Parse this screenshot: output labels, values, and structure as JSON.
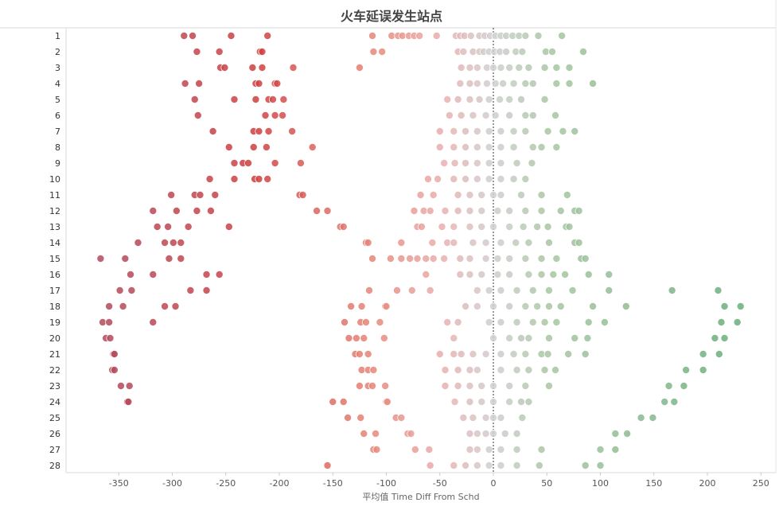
{
  "chart_data": {
    "type": "scatter",
    "title": "火车延误发生站点",
    "xlabel": "平均值 Time Diff From Schd",
    "ylabel": "",
    "xlim": [
      -395,
      265
    ],
    "xticks": [
      -350,
      -300,
      -250,
      -200,
      -150,
      -100,
      -50,
      0,
      50,
      100,
      150,
      200,
      250
    ],
    "xtick_labels": [
      "-350",
      "-300",
      "-250",
      "-200",
      "-150",
      "-100",
      "-50",
      "0",
      "50",
      "100",
      "150",
      "200",
      "250"
    ],
    "reference_line": 0,
    "color_scale": {
      "very_negative": "#b34a5c",
      "negative": "#cf3f3f",
      "mid_negative": "#e8887a",
      "slight_negative": "#e9b0b0",
      "zero": "#cfcfcf",
      "positive": "#a9c6a2",
      "very_positive": "#6aae7c"
    },
    "rows": [
      {
        "label": "1",
        "values": [
          -289,
          -281,
          -245,
          -211,
          -113,
          -95,
          -89,
          -85,
          -79,
          -74,
          -69,
          -53,
          -35,
          -31,
          -27,
          -21,
          -13,
          -8,
          -3,
          2,
          7,
          12,
          18,
          24,
          30,
          42,
          64
        ]
      },
      {
        "label": "2",
        "values": [
          -277,
          -256,
          -218,
          -216,
          -112,
          -104,
          -33,
          -28,
          -19,
          -13,
          -9,
          -4,
          1,
          6,
          12,
          21,
          27,
          49,
          55,
          84
        ]
      },
      {
        "label": "3",
        "values": [
          -255,
          -251,
          -225,
          -216,
          -187,
          -125,
          -30,
          -22,
          -15,
          -6,
          0,
          7,
          15,
          24,
          33,
          48,
          59,
          71
        ]
      },
      {
        "label": "4",
        "values": [
          -288,
          -275,
          -222,
          -219,
          -204,
          -202,
          -31,
          -22,
          -15,
          -6,
          2,
          9,
          19,
          30,
          37,
          59,
          71,
          93
        ]
      },
      {
        "label": "5",
        "values": [
          -279,
          -242,
          -222,
          -210,
          -206,
          -196,
          -43,
          -33,
          -22,
          -13,
          -4,
          6,
          15,
          26,
          48
        ]
      },
      {
        "label": "6",
        "values": [
          -276,
          -213,
          -204,
          -197,
          -41,
          -30,
          -19,
          -7,
          2,
          15,
          30,
          37,
          58
        ]
      },
      {
        "label": "7",
        "values": [
          -262,
          -224,
          -219,
          -210,
          -188,
          -50,
          -37,
          -26,
          -15,
          -4,
          7,
          19,
          30,
          51,
          65,
          76
        ]
      },
      {
        "label": "8",
        "values": [
          -247,
          -224,
          -212,
          -169,
          -50,
          -37,
          -26,
          -15,
          -4,
          7,
          19,
          37,
          45,
          59
        ]
      },
      {
        "label": "9",
        "values": [
          -242,
          -234,
          -229,
          -204,
          -180,
          -46,
          -36,
          -26,
          -15,
          -4,
          7,
          22,
          36
        ]
      },
      {
        "label": "10",
        "values": [
          -265,
          -242,
          -223,
          -219,
          -211,
          -61,
          -52,
          -37,
          -26,
          -15,
          -4,
          7,
          19,
          30
        ]
      },
      {
        "label": "11",
        "values": [
          -301,
          -279,
          -274,
          -260,
          -181,
          -178,
          -68,
          -56,
          -33,
          -22,
          -11,
          0,
          7,
          26,
          45,
          69
        ]
      },
      {
        "label": "12",
        "values": [
          -318,
          -296,
          -277,
          -264,
          -165,
          -155,
          -74,
          -65,
          -59,
          -45,
          -33,
          -22,
          -11,
          4,
          15,
          30,
          45,
          63,
          76,
          80
        ]
      },
      {
        "label": "13",
        "values": [
          -314,
          -304,
          -285,
          -247,
          -143,
          -140,
          -71,
          -67,
          -48,
          -37,
          -22,
          -11,
          0,
          15,
          28,
          41,
          51,
          68,
          71
        ]
      },
      {
        "label": "14",
        "values": [
          -332,
          -307,
          -299,
          -292,
          -119,
          -117,
          -86,
          -57,
          -43,
          -37,
          -19,
          -7,
          7,
          21,
          33,
          52,
          76,
          80
        ]
      },
      {
        "label": "15",
        "values": [
          -367,
          -344,
          -303,
          -292,
          -113,
          -96,
          -86,
          -78,
          -71,
          -63,
          -56,
          -46,
          -31,
          -22,
          -7,
          4,
          15,
          30,
          45,
          59,
          82,
          86
        ]
      },
      {
        "label": "16",
        "values": [
          -339,
          -318,
          -268,
          -256,
          -63,
          -31,
          -22,
          -11,
          4,
          15,
          33,
          45,
          56,
          67,
          89,
          108
        ]
      },
      {
        "label": "17",
        "values": [
          -349,
          -338,
          -283,
          -268,
          -116,
          -90,
          -76,
          -59,
          -15,
          -4,
          7,
          22,
          37,
          52,
          74,
          108,
          167,
          210
        ]
      },
      {
        "label": "18",
        "values": [
          -359,
          -346,
          -307,
          -297,
          -133,
          -123,
          -101,
          -100,
          -26,
          -15,
          0,
          15,
          30,
          41,
          52,
          63,
          93,
          124,
          216,
          231
        ]
      },
      {
        "label": "19",
        "values": [
          -365,
          -359,
          -318,
          -139,
          -124,
          -119,
          -106,
          -43,
          -33,
          -4,
          7,
          22,
          37,
          48,
          59,
          89,
          104,
          213,
          228
        ]
      },
      {
        "label": "20",
        "values": [
          -362,
          -358,
          -135,
          -128,
          -121,
          -102,
          -37,
          0,
          15,
          26,
          33,
          52,
          76,
          88,
          207,
          216
        ]
      },
      {
        "label": "21",
        "values": [
          -355,
          -354,
          -129,
          -125,
          -117,
          -50,
          -37,
          -30,
          -19,
          -7,
          7,
          19,
          30,
          45,
          51,
          70,
          86,
          196,
          211
        ]
      },
      {
        "label": "22",
        "values": [
          -356,
          -354,
          -123,
          -117,
          -112,
          -45,
          -33,
          -22,
          -15,
          7,
          22,
          33,
          48,
          58,
          180,
          196
        ]
      },
      {
        "label": "23",
        "values": [
          -348,
          -340,
          -125,
          -117,
          -113,
          -101,
          -45,
          -33,
          -22,
          -11,
          0,
          15,
          30,
          52,
          164,
          178
        ]
      },
      {
        "label": "24",
        "values": [
          -342,
          -341,
          -150,
          -140,
          -100,
          -99,
          -36,
          -22,
          -11,
          0,
          15,
          26,
          33,
          160,
          169
        ]
      },
      {
        "label": "25",
        "values": [
          -136,
          -124,
          -91,
          -86,
          -28,
          -19,
          -7,
          0,
          7,
          27,
          138,
          149
        ]
      },
      {
        "label": "26",
        "values": [
          -121,
          -110,
          -80,
          -77,
          -22,
          -15,
          -7,
          0,
          11,
          22,
          114,
          125
        ]
      },
      {
        "label": "27",
        "values": [
          -112,
          -109,
          -73,
          -60,
          -22,
          -15,
          -4,
          7,
          22,
          45,
          100,
          114
        ]
      },
      {
        "label": "28",
        "values": [
          -155,
          -59,
          -37,
          -26,
          -15,
          -4,
          7,
          22,
          43,
          86,
          100
        ]
      }
    ]
  }
}
